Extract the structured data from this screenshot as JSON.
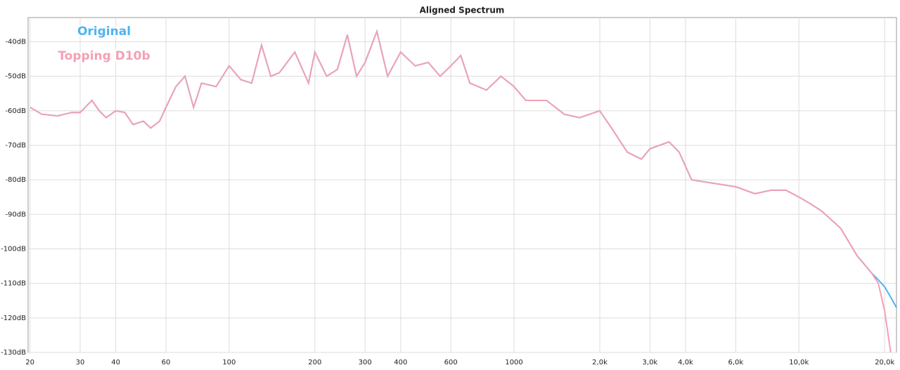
{
  "chart_data": {
    "type": "line",
    "title": "Aligned Spectrum",
    "log_x": true,
    "grid": true,
    "x": [
      20,
      22,
      25,
      28,
      30,
      33,
      35,
      37,
      40,
      43,
      46,
      50,
      53,
      57,
      60,
      65,
      70,
      75,
      80,
      90,
      100,
      110,
      120,
      130,
      140,
      150,
      170,
      190,
      200,
      220,
      240,
      260,
      280,
      300,
      330,
      360,
      400,
      450,
      500,
      550,
      600,
      650,
      700,
      800,
      900,
      1000,
      1100,
      1300,
      1500,
      1700,
      2000,
      2200,
      2500,
      2800,
      3000,
      3500,
      3800,
      4200,
      5000,
      6000,
      7000,
      8000,
      9000,
      10000,
      11000,
      12000,
      14000,
      16000,
      18000,
      19000,
      20000,
      21000,
      22000
    ],
    "series": [
      {
        "name": "Original",
        "color": "#4fb3f0",
        "values": [
          -59,
          -61,
          -61.5,
          -60.5,
          -60.5,
          -57,
          -60,
          -62,
          -60,
          -60.5,
          -64,
          -63,
          -65,
          -63,
          -59,
          -53,
          -50,
          -59,
          -52,
          -53,
          -47,
          -51,
          -52,
          -41,
          -50,
          -49,
          -43,
          -52,
          -43,
          -50,
          -48,
          -38,
          -50,
          -46,
          -37,
          -50,
          -43,
          -47,
          -46,
          -50,
          -47,
          -44,
          -52,
          -54,
          -50,
          -53,
          -57,
          -57,
          -61,
          -62,
          -60,
          -65,
          -72,
          -74,
          -71,
          -69,
          -72,
          -80,
          -81,
          -82,
          -84,
          -83,
          -83,
          -85,
          -87,
          -89,
          -94,
          -102,
          -107,
          -109,
          -111,
          -114,
          -117
        ]
      },
      {
        "name": "Topping D10b",
        "color": "#f4a0b5",
        "values": [
          -59,
          -61,
          -61.5,
          -60.5,
          -60.5,
          -57,
          -60,
          -62,
          -60,
          -60.5,
          -64,
          -63,
          -65,
          -63,
          -59,
          -53,
          -50,
          -59,
          -52,
          -53,
          -47,
          -51,
          -52,
          -41,
          -50,
          -49,
          -43,
          -52,
          -43,
          -50,
          -48,
          -38,
          -50,
          -46,
          -37,
          -50,
          -43,
          -47,
          -46,
          -50,
          -47,
          -44,
          -52,
          -54,
          -50,
          -53,
          -57,
          -57,
          -61,
          -62,
          -60,
          -65,
          -72,
          -74,
          -71,
          -69,
          -72,
          -80,
          -81,
          -82,
          -84,
          -83,
          -83,
          -85,
          -87,
          -89,
          -94,
          -102,
          -107,
          -110,
          -118,
          -130,
          null
        ]
      }
    ],
    "xlim": [
      19.7,
      22000
    ],
    "ylim": [
      -130,
      -33
    ],
    "xticks": [
      20,
      30,
      40,
      60,
      100,
      200,
      300,
      400,
      600,
      {
        "value": 1000,
        "label": "1000"
      },
      {
        "value": 2000,
        "label": "2,0k"
      },
      {
        "value": 3000,
        "label": "3,0k"
      },
      {
        "value": 4000,
        "label": "4,0k"
      },
      {
        "value": 6000,
        "label": "6,0k"
      },
      {
        "value": 10000,
        "label": "10,0k"
      },
      {
        "value": 20000,
        "label": "20,0k"
      }
    ],
    "yticks": [
      {
        "value": -40,
        "label": "-40dB"
      },
      {
        "value": -50,
        "label": "-50dB"
      },
      {
        "value": -60,
        "label": "-60dB"
      },
      {
        "value": -70,
        "label": "-70dB"
      },
      {
        "value": -80,
        "label": "-80dB"
      },
      {
        "value": -90,
        "label": "-90dB"
      },
      {
        "value": -100,
        "label": "-100dB"
      },
      {
        "value": -110,
        "label": "-110dB"
      },
      {
        "value": -120,
        "label": "-120dB"
      },
      {
        "value": -130,
        "label": "-130dB"
      }
    ]
  }
}
